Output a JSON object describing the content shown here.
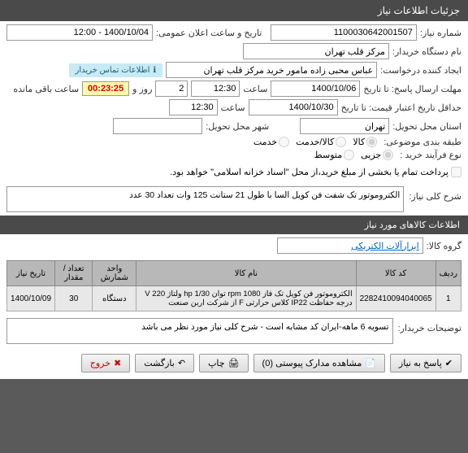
{
  "modal_title": "جزئیات اطلاعات نیاز",
  "fields": {
    "need_no_label": "شماره نیاز:",
    "need_no": "1100030642001507",
    "public_time_label": "تاریخ و ساعت اعلان عمومی:",
    "public_time": "1400/10/04 - 12:00",
    "buyer_org_label": "نام دستگاه خریدار:",
    "buyer_org": "مرکز قلب تهران",
    "requester_label": "ایجاد کننده درخواست:",
    "requester": "عباس  محبی زاده مامور خرید مرکز قلب تهران",
    "deadline_label": "مهلت ارسال پاسخ:  تا تاریخ",
    "deadline_date": "1400/10/06",
    "time_label": "ساعت",
    "deadline_time": "12:30",
    "days": "2",
    "days_label": "روز و",
    "timer": "00:23:25",
    "remain_label": "ساعت باقی مانده",
    "validity_label": "حداقل تاریخ اعتبار قیمت:  تا تاریخ",
    "validity_date": "1400/10/30",
    "validity_time": "12:30",
    "province_label": "استان محل تحویل:",
    "province": "تهران",
    "city_label": "شهر محل تحویل:",
    "class_label": "طبقه بندی موضوعی:",
    "class_goods": "کالا",
    "class_service": "کالا/خدمت",
    "class_serv_only": "خدمت",
    "buy_type_label": "نوع فرآیند خرید :",
    "bt_partial": "جزیی",
    "bt_medium": "متوسط",
    "partial_pay": "پرداخت تمام یا بخشی از مبلغ خرید،از محل \"اسناد خزانه اسلامی\" خواهد بود.",
    "info_bar": "اطلاعات تماس خریدار"
  },
  "need_desc_label": "شرح کلی نیاز:",
  "need_desc": "الکتروموتور تک شفت فن کویل السا با طول 21 ستانت 125 وات تعداد 30 عدد",
  "goods_title": "اطلاعات کالاهای مورد نیاز",
  "group_label": "گروه کالا:",
  "group_value": "ابزارآلات الکتریکی",
  "table": {
    "headers": [
      "ردیف",
      "کد کالا",
      "نام کالا",
      "واحد شمارش",
      "تعداد / مقدار",
      "تاریخ نیاز"
    ],
    "rows": [
      [
        "1",
        "2282410094040065",
        "الکتروموتور فن کویل تک فاز rpm 1080 توان hp 1/30 ولتاژ 220 V درجه حفاظت IP22 کلاس حرارتی F از شرکت اربن صنعت",
        "دستگاه",
        "30",
        "1400/10/09"
      ]
    ]
  },
  "buyer_note_label": "توضیحات خریدار:",
  "buyer_note": "تسویه 6 ماهه-ایران کد مشابه است - شرح کلی نیاز مورد نظر می باشد",
  "buttons": {
    "respond": "پاسخ به نیاز",
    "attachments": "مشاهده مدارک پیوستی (0)",
    "print": "چاپ",
    "back": "بازگشت",
    "exit": "خروج"
  },
  "icons": {
    "info": "ℹ",
    "check": "✔",
    "doc": "📄",
    "print": "🖨",
    "back": "↶",
    "exit": "✖"
  }
}
